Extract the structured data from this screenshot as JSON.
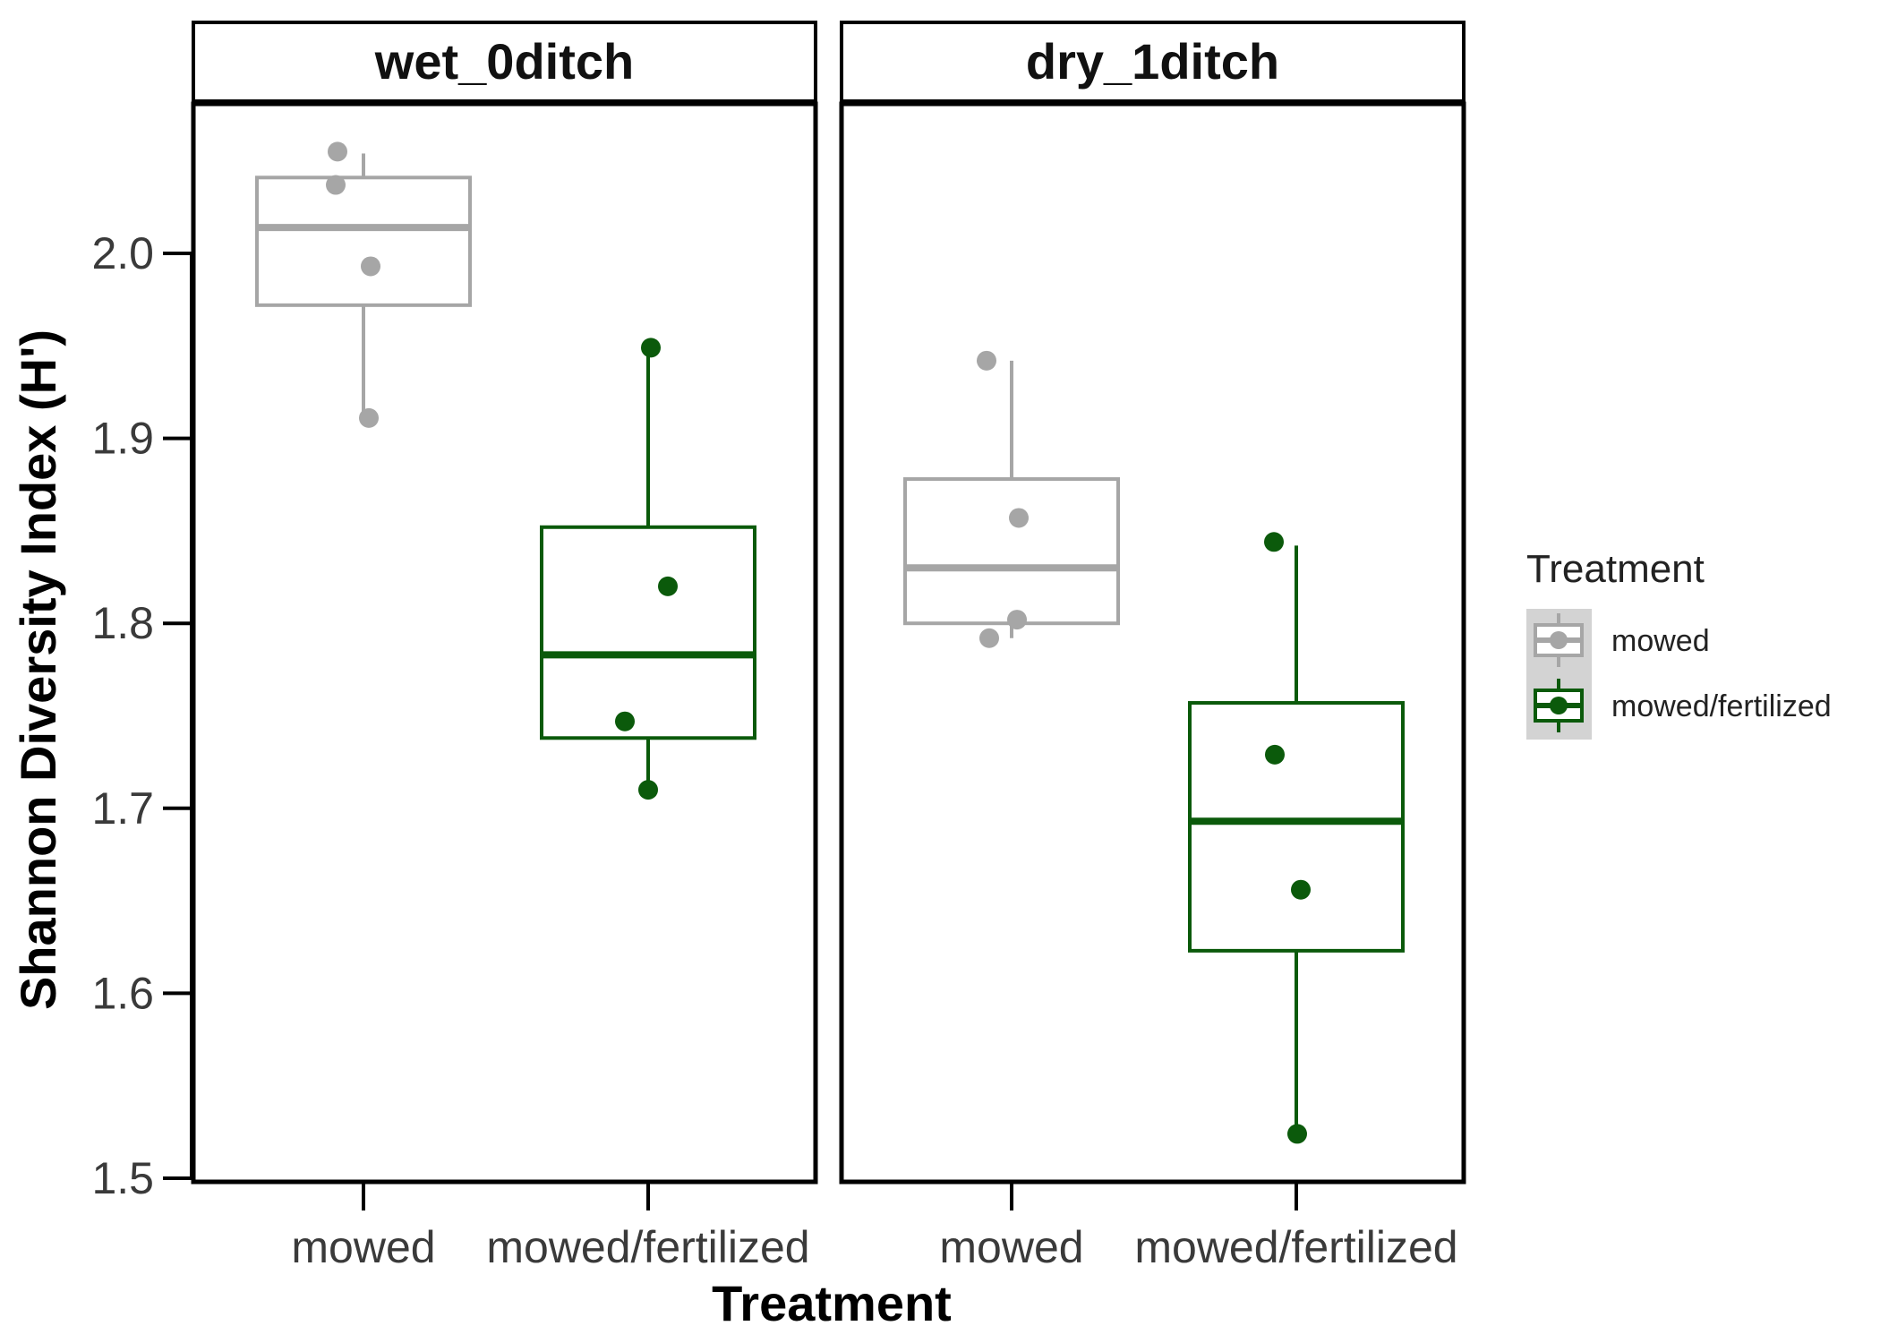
{
  "chart_data": {
    "type": "boxplot",
    "ylabel": "Shannon Diversity Index (H')",
    "xlabel": "Treatment",
    "ylim": [
      1.5,
      2.08
    ],
    "yticks": [
      "1.5",
      "1.6",
      "1.7",
      "1.8",
      "1.9",
      "2.0"
    ],
    "categories": [
      "mowed",
      "mowed/fertilized"
    ],
    "grid": false,
    "legend": {
      "title": "Treatment",
      "placement": "right",
      "items": [
        {
          "name": "mowed",
          "color": "#a6a6a6"
        },
        {
          "name": "mowed/fertilized",
          "color": "#0b5a0b"
        }
      ]
    },
    "facets": [
      {
        "title": "wet_0ditch",
        "boxes": [
          {
            "category": "mowed",
            "color": "#a6a6a6",
            "q1": 1.972,
            "median": 2.014,
            "q3": 2.041,
            "whisker_low": 1.911,
            "whisker_high": 2.054,
            "points": [
              2.055,
              2.037,
              1.993,
              1.911
            ]
          },
          {
            "category": "mowed/fertilized",
            "color": "#0b5a0b",
            "q1": 1.738,
            "median": 1.783,
            "q3": 1.852,
            "whisker_low": 1.71,
            "whisker_high": 1.949,
            "points": [
              1.949,
              1.82,
              1.747,
              1.71
            ]
          }
        ]
      },
      {
        "title": "dry_1ditch",
        "boxes": [
          {
            "category": "mowed",
            "color": "#a6a6a6",
            "q1": 1.8,
            "median": 1.83,
            "q3": 1.878,
            "whisker_low": 1.792,
            "whisker_high": 1.942,
            "points": [
              1.942,
              1.857,
              1.802,
              1.792
            ]
          },
          {
            "category": "mowed/fertilized",
            "color": "#0b5a0b",
            "q1": 1.623,
            "median": 1.693,
            "q3": 1.757,
            "whisker_low": 1.524,
            "whisker_high": 1.842,
            "points": [
              1.844,
              1.729,
              1.656,
              1.524
            ]
          }
        ]
      }
    ]
  }
}
